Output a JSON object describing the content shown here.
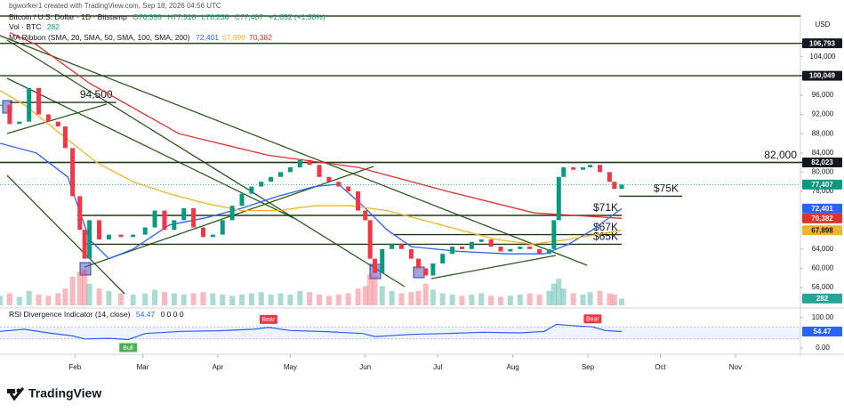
{
  "header": {
    "credit": "bgworker1 created with TradingView.com, Sep 18, 2026 04:56 UTC",
    "logo": "TradingView"
  },
  "chart_data": {
    "type": "candlestick",
    "title": "Bitcoin / U.S. Dollar · 1D · Bitstamp",
    "ohlc": [
      "O76,355",
      "H77,518",
      "L76,236",
      "C77,407",
      "+1,052 (+1.38%)"
    ],
    "currency": "USD",
    "xlim": [
      0,
      332
    ],
    "xticks": [
      {
        "value": 31,
        "label": "Feb"
      },
      {
        "value": 59,
        "label": "Mar"
      },
      {
        "value": 90,
        "label": "Apr"
      },
      {
        "value": 120,
        "label": "May"
      },
      {
        "value": 151,
        "label": "Jun"
      },
      {
        "value": 181,
        "label": "Jul"
      },
      {
        "value": 212,
        "label": "Aug"
      },
      {
        "value": 243,
        "label": "Sep"
      },
      {
        "value": 273,
        "label": "Oct"
      },
      {
        "value": 304,
        "label": "Nov"
      }
    ],
    "ylim": [
      52300,
      112100
    ],
    "yticks": [
      {
        "value": 56000,
        "label": "56,000"
      },
      {
        "value": 60000,
        "label": "60,000"
      },
      {
        "value": 64000,
        "label": "64,000"
      },
      {
        "value": 76000,
        "label": "76,000"
      },
      {
        "value": 80000,
        "label": "80,000"
      },
      {
        "value": 84000,
        "label": "84,000"
      },
      {
        "value": 88000,
        "label": "88,000"
      },
      {
        "value": 92000,
        "label": "92,000"
      },
      {
        "value": 96000,
        "label": "96,000"
      },
      {
        "value": 104000,
        "label": "104,000"
      }
    ],
    "color_up": "#089981",
    "color_down": "#f23645",
    "x": [
      0,
      4,
      8,
      12,
      16,
      20,
      24,
      27,
      30,
      33,
      35,
      37,
      41,
      45,
      50,
      55,
      60,
      64,
      68,
      72,
      76,
      80,
      84,
      88,
      92,
      96,
      100,
      104,
      108,
      112,
      116,
      120,
      124,
      128,
      132,
      136,
      140,
      144,
      148,
      151,
      153,
      155,
      158,
      162,
      166,
      170,
      173,
      176,
      179,
      183,
      187,
      191,
      195,
      199,
      203,
      207,
      211,
      215,
      219,
      223,
      227,
      229,
      231,
      233,
      237,
      241,
      244,
      248,
      252,
      254,
      257
    ],
    "values": [
      94000,
      90000,
      90500,
      97500,
      92000,
      90500,
      89500,
      85000,
      75000,
      68000,
      62000,
      70000,
      66000,
      67000,
      66500,
      67000,
      68500,
      72000,
      68000,
      70000,
      72500,
      68500,
      66500,
      67000,
      70000,
      73000,
      75500,
      77000,
      78000,
      79000,
      80000,
      81000,
      82500,
      81500,
      79000,
      78000,
      77000,
      76000,
      72000,
      70000,
      62000,
      59000,
      64000,
      65000,
      64000,
      62000,
      60000,
      58500,
      61000,
      63000,
      64500,
      64000,
      65500,
      66000,
      64500,
      63500,
      64000,
      64500,
      64000,
      63000,
      64000,
      70000,
      79000,
      81000,
      80500,
      81000,
      81500,
      80000,
      78000,
      76500,
      77407
    ],
    "last_label": "77,407",
    "volume": {
      "name": "Vol · BTC",
      "label": "282",
      "color": "#26a69a",
      "ylim": [
        0,
        12000
      ],
      "values": [
        400,
        500,
        350,
        600,
        450,
        400,
        500,
        700,
        1200,
        1400,
        1500,
        900,
        700,
        600,
        500,
        450,
        500,
        650,
        550,
        500,
        450,
        500,
        550,
        500,
        450,
        400,
        450,
        500,
        550,
        450,
        500,
        450,
        600,
        550,
        450,
        400,
        450,
        500,
        700,
        800,
        1300,
        1200,
        800,
        600,
        500,
        550,
        600,
        900,
        650,
        500,
        450,
        400,
        450,
        500,
        400,
        350,
        400,
        450,
        500,
        450,
        600,
        900,
        1100,
        700,
        500,
        450,
        550,
        600,
        500,
        450,
        282
      ]
    },
    "ma_ribbon": {
      "name": "MA Ribbon (SMA, 20, SMA, 50, SMA, 100, SMA, 200)",
      "series": [
        {
          "color": "#2962ff",
          "label": "72,401",
          "x": [
            0,
            15,
            28,
            37,
            45,
            55,
            70,
            85,
            100,
            115,
            130,
            140,
            150,
            160,
            170,
            190,
            210,
            225,
            235,
            245,
            257
          ],
          "values": [
            86000,
            84000,
            79000,
            66000,
            62000,
            64000,
            69000,
            70500,
            72500,
            75000,
            77000,
            77500,
            73000,
            68000,
            64500,
            63500,
            63000,
            63000,
            65000,
            68000,
            72401
          ]
        },
        {
          "color": "#f0b429",
          "label": "67,898",
          "x": [
            0,
            10,
            25,
            40,
            55,
            70,
            85,
            100,
            115,
            130,
            145,
            160,
            175,
            190,
            205,
            220,
            235,
            257
          ],
          "values": [
            97000,
            94000,
            88000,
            82000,
            78000,
            75500,
            73500,
            72000,
            72000,
            73000,
            73000,
            72000,
            70000,
            68000,
            66000,
            65000,
            66000,
            67898
          ]
        },
        {
          "color": "#e0312b",
          "label": "70,382",
          "x": [
            4,
            15,
            37,
            74,
            111,
            148,
            185,
            221,
            257
          ],
          "values": [
            109000,
            106500,
            98500,
            88000,
            83500,
            81000,
            76000,
            71500,
            70382
          ]
        }
      ]
    },
    "levels": [
      {
        "value": 106793,
        "x": [
          0,
          332
        ],
        "label": "106,793"
      },
      {
        "value": 100049,
        "x": [
          0,
          332
        ],
        "label": "100,049"
      },
      {
        "value": 82023,
        "x": [
          0,
          332
        ],
        "label": "82,023"
      },
      {
        "value": 82000,
        "x": [
          0,
          332
        ],
        "text": "82,000"
      },
      {
        "value": 94500,
        "x": [
          4,
          48
        ],
        "text": "94,500"
      },
      {
        "value": 75000,
        "x": [
          256,
          282
        ],
        "text": "$75K"
      },
      {
        "value": 71000,
        "x": [
          32,
          257
        ],
        "text": "$71K"
      },
      {
        "value": 67000,
        "x": [
          163,
          257
        ],
        "text": "$67K"
      },
      {
        "value": 65000,
        "x": [
          35,
          257
        ],
        "text": "$65K"
      }
    ],
    "rsi": {
      "name": "RSI Divergence Indicator (14, close)",
      "extra": "0 0 0 0",
      "label": "54.47",
      "color": "#2962ff",
      "ylim": [
        0,
        100
      ],
      "yticks": [
        {
          "value": 100,
          "label": "100.00"
        },
        {
          "value": 0,
          "label": "0.00"
        }
      ],
      "band": [
        30,
        70
      ],
      "x": [
        0,
        10,
        20,
        30,
        35,
        45,
        53,
        60,
        75,
        90,
        105,
        111,
        120,
        135,
        150,
        155,
        170,
        185,
        200,
        215,
        225,
        230,
        240,
        245,
        250,
        257
      ],
      "values": [
        55,
        62,
        50,
        40,
        30,
        32,
        28,
        48,
        55,
        57,
        62,
        68,
        58,
        54,
        48,
        38,
        45,
        48,
        52,
        50,
        55,
        78,
        72,
        70,
        58,
        54.47
      ],
      "signals": [
        {
          "x": 53,
          "value": 28,
          "text": "Bull"
        },
        {
          "x": 111,
          "value": 68,
          "text": "Bear"
        },
        {
          "x": 245,
          "value": 70,
          "text": "Bear"
        }
      ]
    }
  }
}
